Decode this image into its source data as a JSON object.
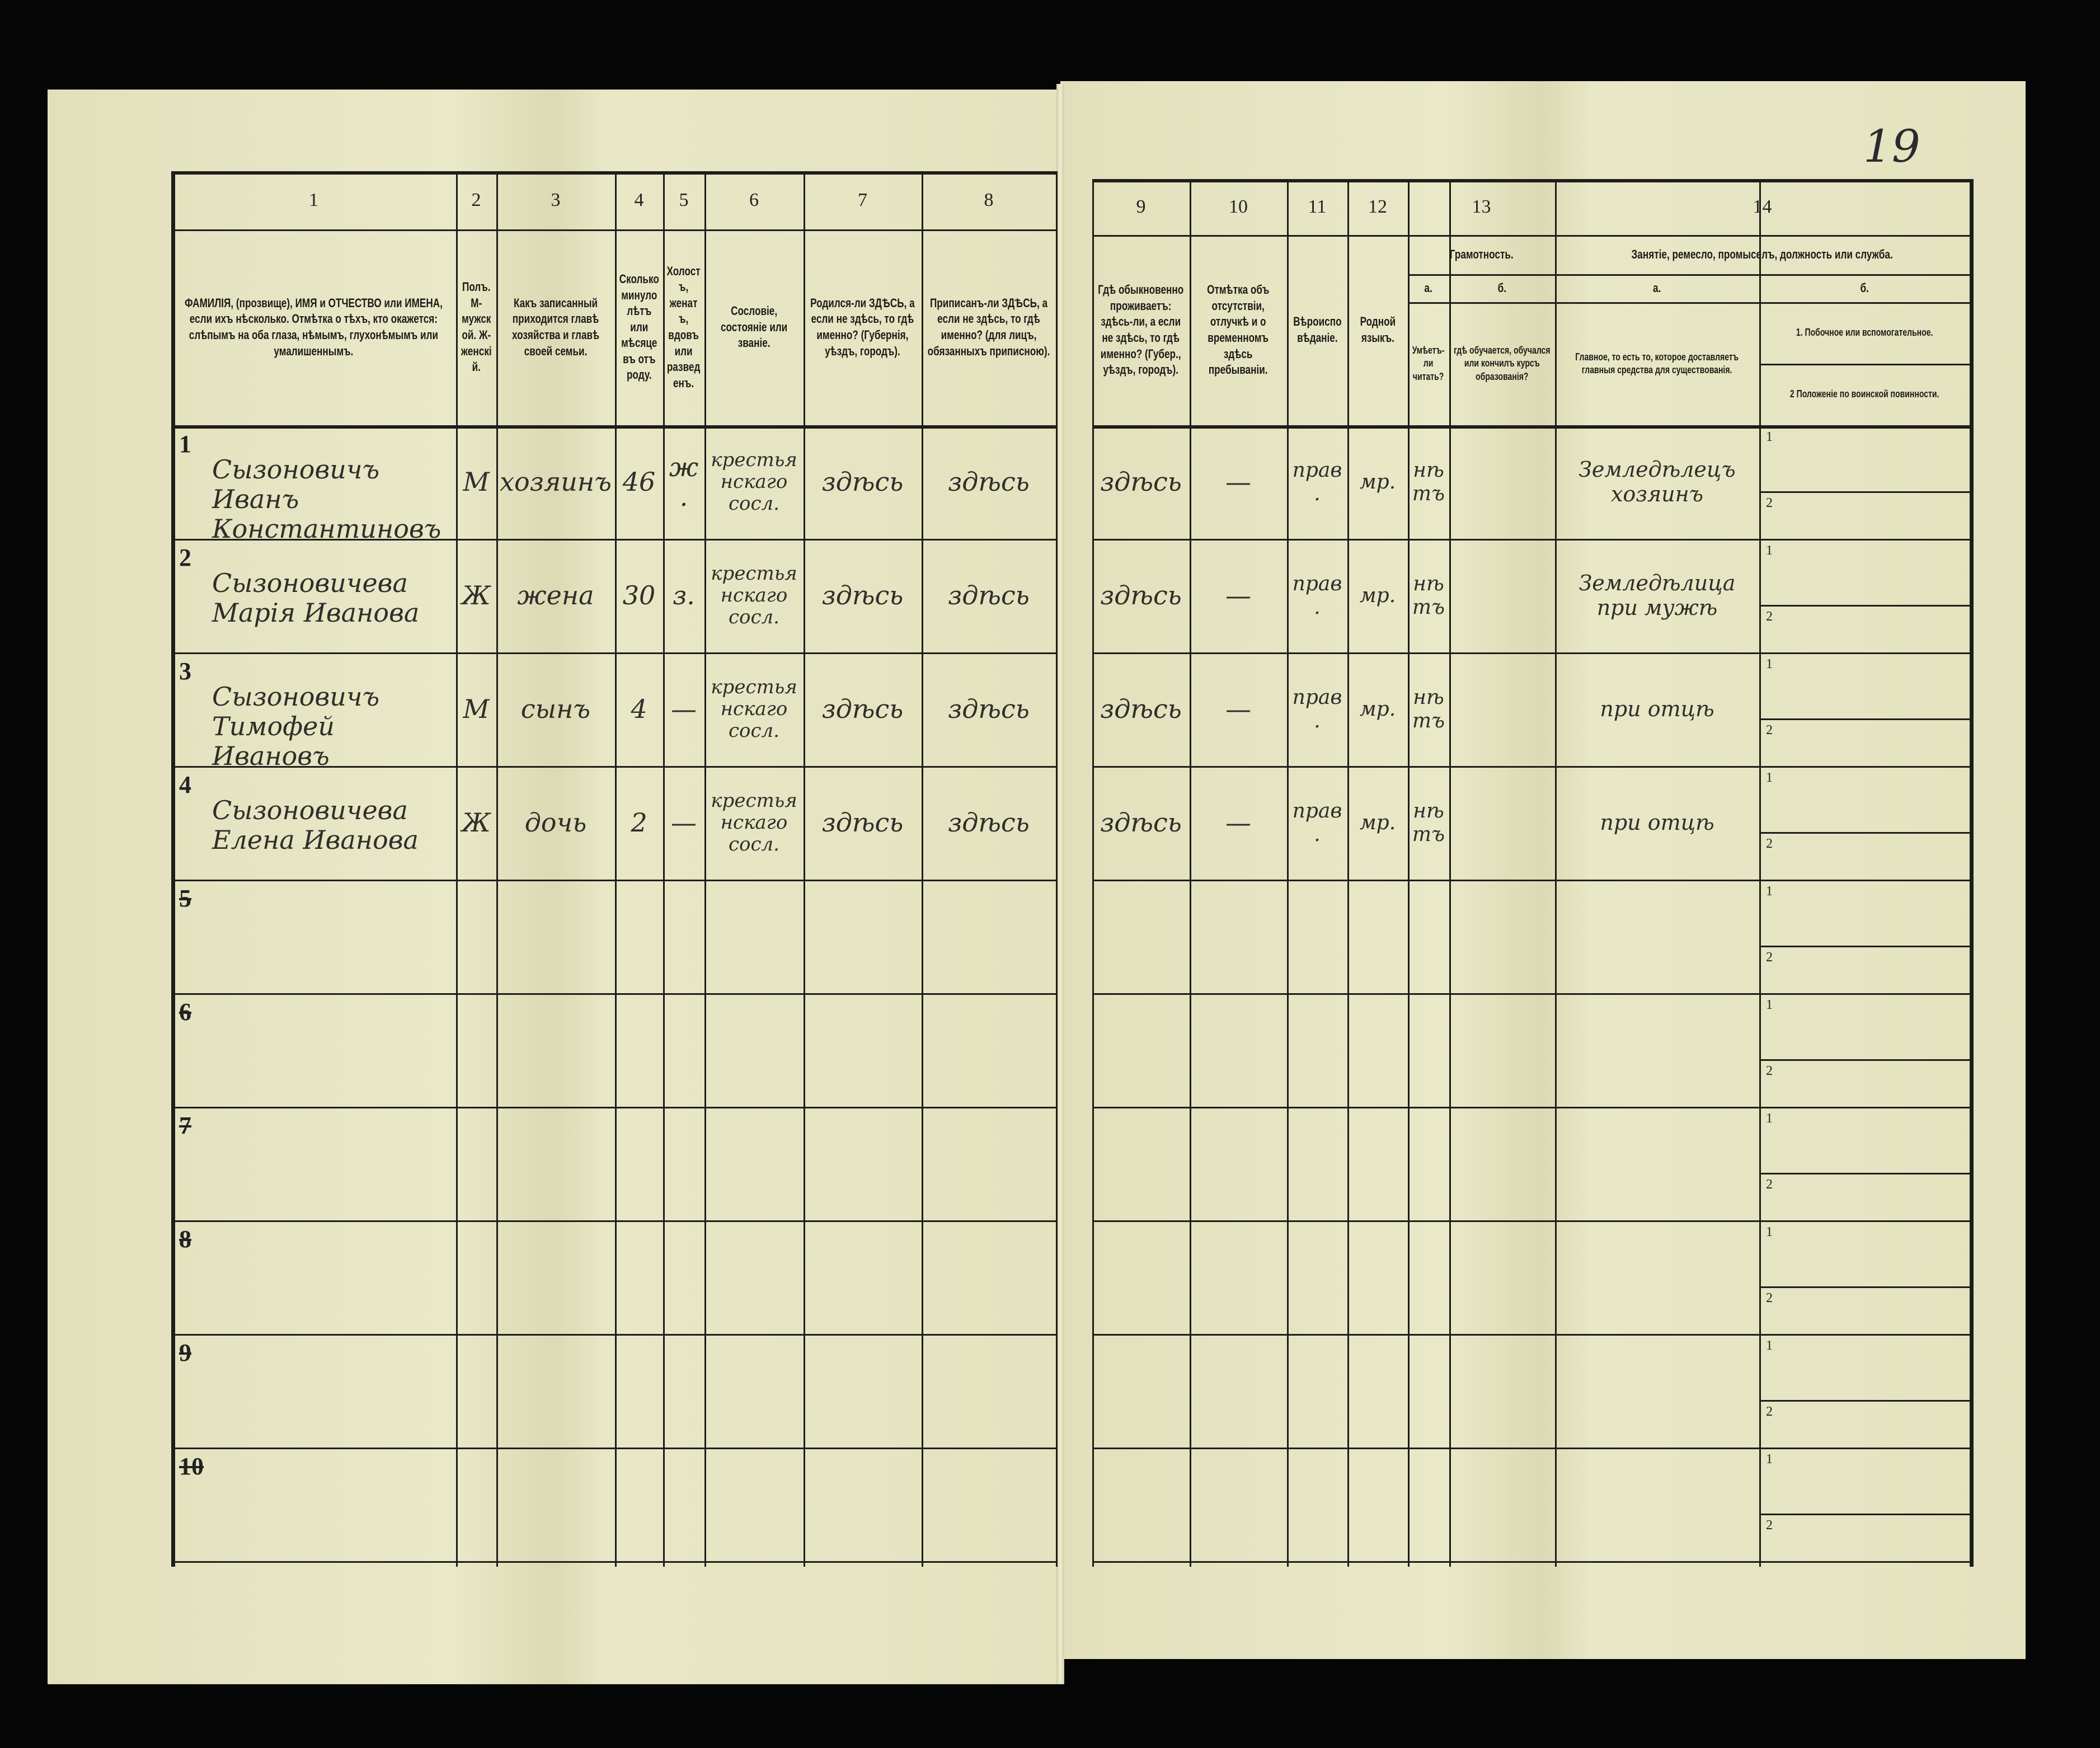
{
  "page_number": "19",
  "colors": {
    "paper": "#e6e5c3",
    "ink": "#1d1d1a",
    "background": "#050505"
  },
  "header": {
    "col_numbers": [
      "1",
      "2",
      "3",
      "4",
      "5",
      "6",
      "7",
      "8",
      "9",
      "10",
      "11",
      "12",
      "13",
      "14"
    ],
    "c1": "ФАМИЛІЯ, (прозвище), ИМЯ и ОТЧЕСТВО или ИМЕНА, если ихъ нѣсколько. Отмѣтка о тѣхъ, кто окажется: слѣпымъ на оба глаза, нѣмымъ, глухонѣмымъ или умалишеннымъ.",
    "c2": "Полъ. М-мужской. Ж-женскій.",
    "c3": "Какъ записанный приходится главѣ хозяйства и главѣ своей семьи.",
    "c4": "Сколько минуло лѣтъ или мѣсяцевъ отъ роду.",
    "c5": "Холостъ, женатъ, вдовъ или разведенъ.",
    "c6": "Сословіе, состояніе или званіе.",
    "c7": "Родился-ли ЗДѢСЬ, а если не здѣсь, то гдѣ именно? (Губернія, уѣздъ, городъ).",
    "c8": "Приписанъ-ли ЗДѢСЬ, а если не здѣсь, то гдѣ именно? (для лицъ, обязанныхъ приписною).",
    "c9": "Гдѣ обыкновенно проживаетъ: здѣсь-ли, а если не здѣсь, то гдѣ именно? (Губер., уѣздъ, городъ).",
    "c10": "Отмѣтка объ отсутствіи, отлучкѣ и о временномъ здѣсь пребываніи.",
    "c11": "Вѣроисповѣданіе.",
    "c12": "Родной языкъ.",
    "c13": "Грамотность.",
    "c13a_letter": "а.",
    "c13b_letter": "б.",
    "c13a": "Умѣетъ-ли читать?",
    "c13b": "гдѣ обучается, обучался или кончилъ курсъ образованія?",
    "c14": "Занятіе, ремесло, промыселъ, должность или служба.",
    "c14a_letter": "а.",
    "c14b_letter": "б.",
    "c14a": "Главное, то есть то, которое доставляетъ главныя средства для существованія.",
    "c14b1": "1. Побочное или вспомогательное.",
    "c14b2": "2 Положеніе по воинской повинности."
  },
  "sub_labels": [
    "1",
    "2"
  ],
  "rows": [
    {
      "n": "1",
      "name": "Сызоновичъ Иванъ Константиновъ",
      "sex": "М",
      "relation": "хозяинъ",
      "age": "46",
      "marital": "ж.",
      "estate": "крестьянскаго сосл.",
      "born": "здѣсь",
      "registered": "здѣсь",
      "resides": "здѣсь",
      "absence": "—",
      "religion": "прав.",
      "language": "мр.",
      "literate": "нѣтъ",
      "education": "",
      "occupation": "Земледѣлецъ хозяинъ",
      "secondary": "",
      "military": ""
    },
    {
      "n": "2",
      "name": "Сызоновичева Марія Иванова",
      "sex": "Ж",
      "relation": "жена",
      "age": "30",
      "marital": "з.",
      "estate": "крестьянскаго сосл.",
      "born": "здѣсь",
      "registered": "здѣсь",
      "resides": "здѣсь",
      "absence": "—",
      "religion": "прав.",
      "language": "мр.",
      "literate": "нѣтъ",
      "education": "",
      "occupation": "Земледѣлица при мужѣ",
      "secondary": "",
      "military": ""
    },
    {
      "n": "3",
      "name": "Сызоновичъ Тимофей Ивановъ",
      "sex": "М",
      "relation": "сынъ",
      "age": "4",
      "marital": "—",
      "estate": "крестьянскаго сосл.",
      "born": "здѣсь",
      "registered": "здѣсь",
      "resides": "здѣсь",
      "absence": "—",
      "religion": "прав.",
      "language": "мр.",
      "literate": "нѣтъ",
      "education": "",
      "occupation": "при отцѣ",
      "secondary": "",
      "military": ""
    },
    {
      "n": "4",
      "name": "Сызоновичева Елена Иванова",
      "sex": "Ж",
      "relation": "дочь",
      "age": "2",
      "marital": "—",
      "estate": "крестьянскаго сосл.",
      "born": "здѣсь",
      "registered": "здѣсь",
      "resides": "здѣсь",
      "absence": "—",
      "religion": "прав.",
      "language": "мр.",
      "literate": "нѣтъ",
      "education": "",
      "occupation": "при отцѣ",
      "secondary": "",
      "military": ""
    },
    {
      "n": "5"
    },
    {
      "n": "6"
    },
    {
      "n": "7"
    },
    {
      "n": "8"
    },
    {
      "n": "9"
    },
    {
      "n": "10"
    }
  ]
}
